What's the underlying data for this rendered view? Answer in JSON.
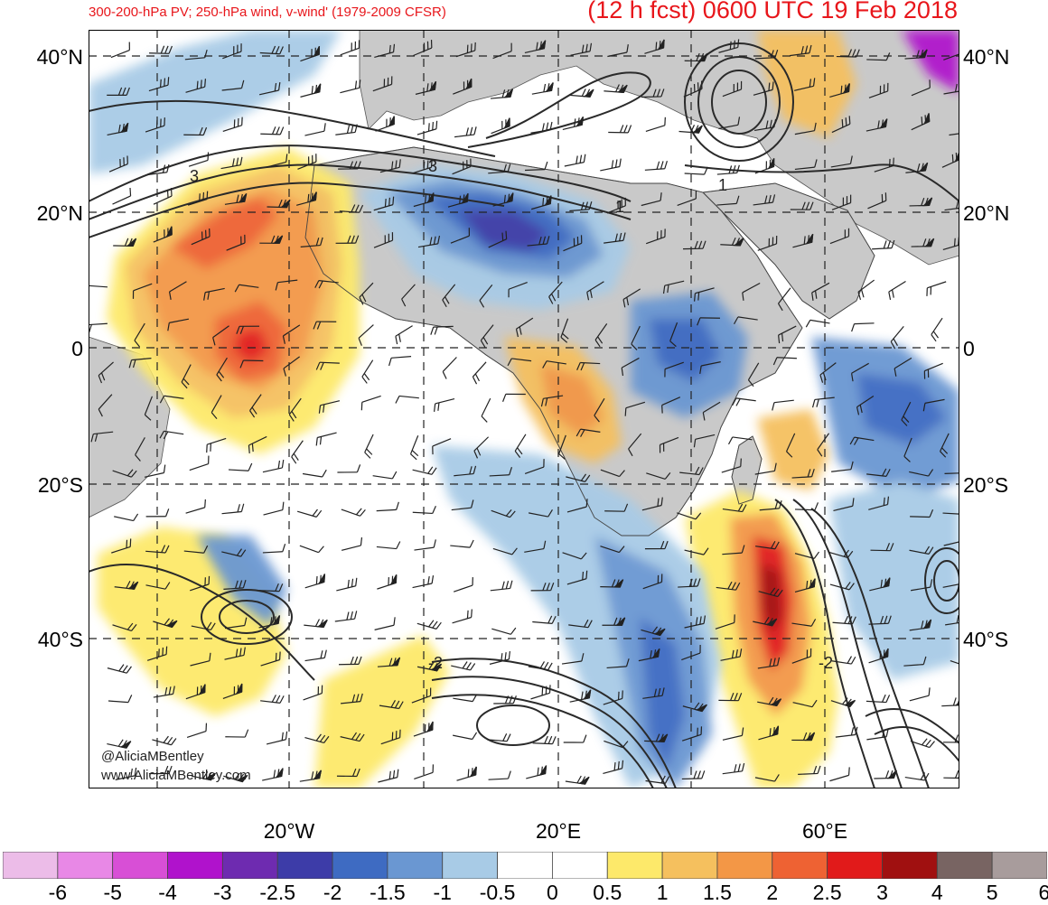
{
  "header": {
    "left_title": "300-200-hPa PV; 250-hPa wind, v-wind' (1979-2009 CFSR)",
    "right_title": "(12 h fcst) 0600 UTC 19 Feb 2018"
  },
  "latitude_labels": [
    "40°N",
    "20°N",
    "0",
    "20°S",
    "40°S"
  ],
  "longitude_labels": [
    "20°W",
    "20°E",
    "60°E"
  ],
  "contour_labels": [
    "3",
    "3",
    "1",
    "1",
    "-2",
    "-2"
  ],
  "colorbar": {
    "colors": [
      "#ecbce8",
      "#e888e6",
      "#d84fd6",
      "#b012cc",
      "#6e2bb0",
      "#3d3ca8",
      "#3e6bc2",
      "#6a97d2",
      "#a8cbe6",
      "#ffffff",
      "#ffffff",
      "#fde96a",
      "#f5c05e",
      "#f39746",
      "#ee6233",
      "#e11a1a",
      "#a01010",
      "#786462",
      "#a89c9c"
    ],
    "labels": [
      "-6",
      "-5",
      "-4",
      "-3",
      "-2.5",
      "-2",
      "-1.5",
      "-1",
      "-0.5",
      "0",
      "0.5",
      "1",
      "1.5",
      "2",
      "2.5",
      "3",
      "4",
      "5",
      "6"
    ]
  },
  "watermark": {
    "handle": "@AliciaMBentley",
    "site": "www.AliciaMBentley.com"
  }
}
